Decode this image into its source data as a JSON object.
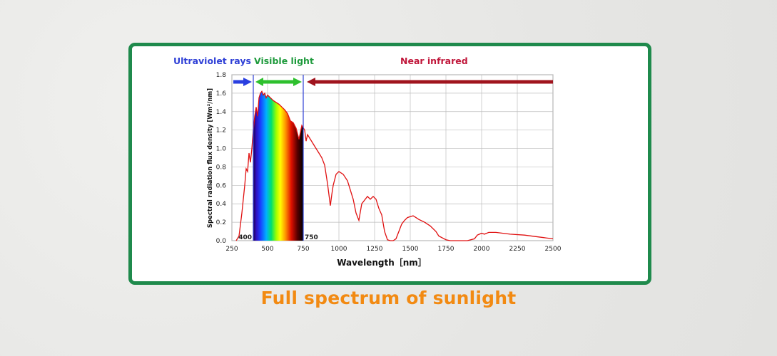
{
  "caption": "Full spectrum of sunlight",
  "colors": {
    "frame": "#1f8a4c",
    "caption": "#f28a12",
    "uv": "#2e3fd6",
    "visible": "#1e9a3c",
    "nir": "#c0163a",
    "curve": "#e01010",
    "arrow_uv": "#2a3fe0",
    "arrow_vis": "#2ec02e",
    "arrow_nir": "#a0141e"
  },
  "chart_data": {
    "type": "area",
    "xlabel": "Wavelength［nm］",
    "ylabel": "Spectral radiation flux density [Wm²/nm]",
    "xlim": [
      250,
      2500
    ],
    "ylim": [
      0,
      1.8
    ],
    "xticks": [
      "250",
      "500",
      "750",
      "1000",
      "1250",
      "1500",
      "1750",
      "2000",
      "2250",
      "2500"
    ],
    "yticks": [
      "0.0",
      "0.2",
      "0.4",
      "0.6",
      "0.8",
      "1.0",
      "1.2",
      "1.4",
      "1.6",
      "1.8"
    ],
    "grid": true,
    "regions": [
      {
        "name": "Ultraviolet rays",
        "from": 250,
        "to": 400
      },
      {
        "name": "Visible light",
        "from": 400,
        "to": 750
      },
      {
        "name": "Near infrared",
        "from": 750,
        "to": 2500
      }
    ],
    "boundary_labels": [
      "400",
      "750"
    ],
    "x": [
      280,
      300,
      320,
      340,
      350,
      360,
      370,
      380,
      390,
      400,
      410,
      420,
      430,
      440,
      450,
      460,
      470,
      480,
      490,
      500,
      520,
      540,
      560,
      580,
      600,
      620,
      640,
      660,
      680,
      700,
      720,
      740,
      760,
      770,
      780,
      800,
      820,
      840,
      860,
      880,
      900,
      920,
      930,
      940,
      950,
      960,
      980,
      1000,
      1030,
      1060,
      1080,
      1100,
      1120,
      1140,
      1160,
      1200,
      1220,
      1240,
      1260,
      1280,
      1300,
      1320,
      1340,
      1360,
      1380,
      1400,
      1420,
      1440,
      1460,
      1480,
      1500,
      1520,
      1540,
      1560,
      1600,
      1640,
      1680,
      1700,
      1750,
      1780,
      1800,
      1850,
      1900,
      1950,
      1970,
      2000,
      2020,
      2050,
      2100,
      2150,
      2200,
      2300,
      2400,
      2450,
      2500
    ],
    "values": [
      0.0,
      0.05,
      0.3,
      0.6,
      0.78,
      0.75,
      0.95,
      0.85,
      1.0,
      1.2,
      1.35,
      1.45,
      1.35,
      1.55,
      1.6,
      1.62,
      1.58,
      1.6,
      1.55,
      1.58,
      1.55,
      1.52,
      1.5,
      1.48,
      1.45,
      1.42,
      1.38,
      1.3,
      1.28,
      1.22,
      1.1,
      1.25,
      1.2,
      1.08,
      1.15,
      1.1,
      1.05,
      1.0,
      0.95,
      0.9,
      0.82,
      0.62,
      0.5,
      0.38,
      0.5,
      0.6,
      0.72,
      0.75,
      0.72,
      0.65,
      0.55,
      0.45,
      0.3,
      0.22,
      0.4,
      0.48,
      0.45,
      0.48,
      0.45,
      0.35,
      0.28,
      0.1,
      0.01,
      0.0,
      0.0,
      0.02,
      0.1,
      0.18,
      0.22,
      0.25,
      0.26,
      0.27,
      0.25,
      0.23,
      0.2,
      0.16,
      0.1,
      0.05,
      0.01,
      0.0,
      0.0,
      0.0,
      0.0,
      0.02,
      0.06,
      0.08,
      0.07,
      0.09,
      0.09,
      0.08,
      0.07,
      0.06,
      0.04,
      0.03,
      0.02
    ]
  }
}
